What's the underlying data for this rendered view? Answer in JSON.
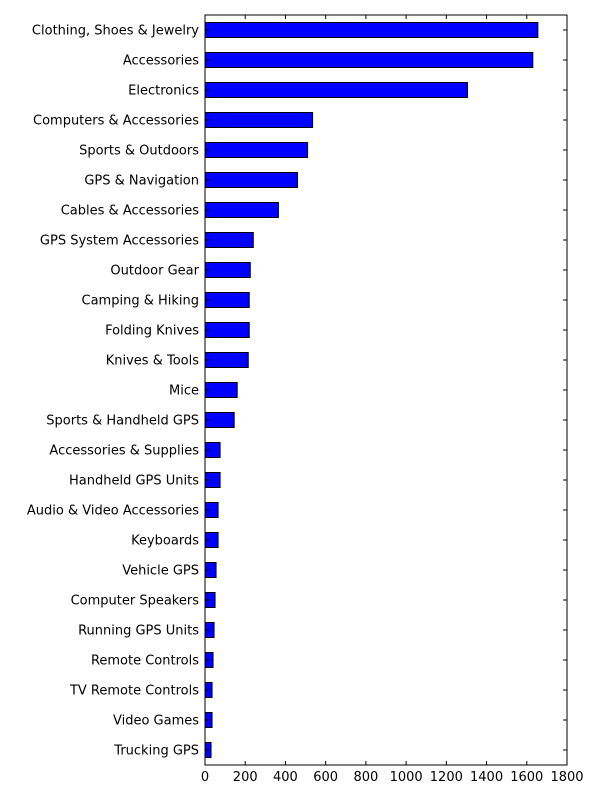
{
  "chart_data": {
    "type": "bar",
    "orientation": "horizontal",
    "title": "",
    "xlabel": "",
    "ylabel": "",
    "xlim": [
      0,
      1800
    ],
    "xticks": [
      0,
      200,
      400,
      600,
      800,
      1000,
      1200,
      1400,
      1600,
      1800
    ],
    "grid": false,
    "bar_color": "#0000ff",
    "categories": [
      "Clothing, Shoes & Jewelry",
      "Accessories",
      "Electronics",
      "Computers & Accessories",
      "Sports & Outdoors",
      "GPS & Navigation",
      "Cables & Accessories",
      "GPS System Accessories",
      "Outdoor Gear",
      "Camping & Hiking",
      "Folding Knives",
      "Knives & Tools",
      "Mice",
      "Sports & Handheld GPS",
      "Accessories & Supplies",
      "Handheld GPS Units",
      "Audio & Video Accessories",
      "Keyboards",
      "Vehicle GPS",
      "Computer Speakers",
      "Running GPS Units",
      "Remote Controls",
      "TV Remote Controls",
      "Video Games",
      "Trucking GPS"
    ],
    "values": [
      1655,
      1630,
      1305,
      535,
      510,
      460,
      365,
      240,
      225,
      220,
      220,
      215,
      160,
      145,
      75,
      75,
      65,
      65,
      55,
      50,
      45,
      40,
      35,
      35,
      30
    ]
  }
}
